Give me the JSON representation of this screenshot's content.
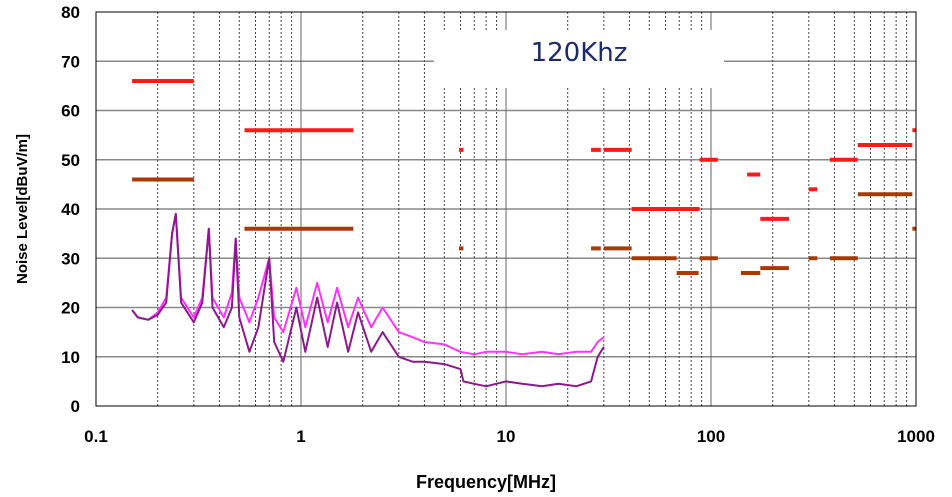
{
  "chart_data": {
    "type": "line",
    "annotation": "120Khz",
    "xlabel": "Frequency[MHz]",
    "ylabel": "Noise Level[dBuV/m]",
    "xscale": "log",
    "xlim": [
      0.1,
      1000
    ],
    "ylim": [
      0,
      80
    ],
    "xticks": [
      0.1,
      1,
      10,
      100,
      1000
    ],
    "xtick_labels": [
      "0.1",
      "1",
      "10",
      "100",
      "1000"
    ],
    "yticks": [
      0,
      10,
      20,
      30,
      40,
      50,
      60,
      70,
      80
    ],
    "ytick_labels": [
      "0",
      "10",
      "20",
      "30",
      "40",
      "50",
      "60",
      "70",
      "80"
    ],
    "grid": true,
    "colors": {
      "limit_high": "#ff1a1a",
      "limit_low": "#a83a0a",
      "trace_magenta": "#ff33ff",
      "trace_purple": "#8b1a8b"
    },
    "limit_lines_red": [
      {
        "x": [
          0.15,
          0.3
        ],
        "y": 66
      },
      {
        "x": [
          0.53,
          1.8
        ],
        "y": 56
      },
      {
        "x": [
          5.9,
          6.2
        ],
        "y": 52
      },
      {
        "x": [
          26,
          29
        ],
        "y": 52
      },
      {
        "x": [
          30,
          41
        ],
        "y": 52
      },
      {
        "x": [
          41,
          88
        ],
        "y": 40
      },
      {
        "x": [
          88,
          108
        ],
        "y": 50
      },
      {
        "x": [
          150,
          174
        ],
        "y": 47
      },
      {
        "x": [
          174,
          240
        ],
        "y": 38
      },
      {
        "x": [
          300,
          330
        ],
        "y": 44
      },
      {
        "x": [
          380,
          520
        ],
        "y": 50
      },
      {
        "x": [
          520,
          960
        ],
        "y": 53
      },
      {
        "x": [
          960,
          1000
        ],
        "y": 56
      }
    ],
    "limit_lines_brown": [
      {
        "x": [
          0.15,
          0.3
        ],
        "y": 46
      },
      {
        "x": [
          0.53,
          1.8
        ],
        "y": 36
      },
      {
        "x": [
          5.9,
          6.2
        ],
        "y": 32
      },
      {
        "x": [
          26,
          29
        ],
        "y": 32
      },
      {
        "x": [
          30,
          41
        ],
        "y": 32
      },
      {
        "x": [
          41,
          68
        ],
        "y": 30
      },
      {
        "x": [
          68,
          87
        ],
        "y": 27
      },
      {
        "x": [
          88,
          108
        ],
        "y": 30
      },
      {
        "x": [
          140,
          174
        ],
        "y": 27
      },
      {
        "x": [
          174,
          240
        ],
        "y": 28
      },
      {
        "x": [
          300,
          330
        ],
        "y": 30
      },
      {
        "x": [
          380,
          520
        ],
        "y": 30
      },
      {
        "x": [
          520,
          960
        ],
        "y": 43
      },
      {
        "x": [
          960,
          1000
        ],
        "y": 36
      }
    ],
    "series": [
      {
        "values": [
          [
            0.15,
            19.5
          ],
          [
            0.16,
            18
          ],
          [
            0.18,
            17.5
          ],
          [
            0.2,
            19
          ],
          [
            0.22,
            22
          ],
          [
            0.235,
            35
          ],
          [
            0.245,
            39
          ],
          [
            0.26,
            22
          ],
          [
            0.3,
            18
          ],
          [
            0.33,
            22
          ],
          [
            0.355,
            36
          ],
          [
            0.37,
            22
          ],
          [
            0.42,
            18
          ],
          [
            0.46,
            23
          ],
          [
            0.48,
            34
          ],
          [
            0.5,
            22
          ],
          [
            0.56,
            17
          ],
          [
            0.62,
            22
          ],
          [
            0.7,
            30
          ],
          [
            0.74,
            18
          ],
          [
            0.82,
            15
          ],
          [
            0.95,
            24
          ],
          [
            1.05,
            16
          ],
          [
            1.2,
            25
          ],
          [
            1.35,
            17
          ],
          [
            1.5,
            24
          ],
          [
            1.7,
            16
          ],
          [
            1.9,
            22
          ],
          [
            2.2,
            16
          ],
          [
            2.5,
            20
          ],
          [
            3,
            15
          ],
          [
            3.5,
            14
          ],
          [
            4,
            13
          ],
          [
            5,
            12.5
          ],
          [
            6,
            11
          ],
          [
            7,
            10.5
          ],
          [
            8,
            11
          ],
          [
            10,
            11
          ],
          [
            12,
            10.5
          ],
          [
            15,
            11
          ],
          [
            18,
            10.5
          ],
          [
            22,
            11
          ],
          [
            26,
            11
          ],
          [
            28,
            13
          ],
          [
            30,
            14
          ]
        ]
      },
      {
        "values": [
          [
            0.15,
            19.5
          ],
          [
            0.16,
            18
          ],
          [
            0.18,
            17.5
          ],
          [
            0.2,
            18.5
          ],
          [
            0.22,
            21
          ],
          [
            0.235,
            35
          ],
          [
            0.245,
            39
          ],
          [
            0.26,
            21
          ],
          [
            0.3,
            17
          ],
          [
            0.33,
            21
          ],
          [
            0.355,
            36
          ],
          [
            0.37,
            20
          ],
          [
            0.42,
            16
          ],
          [
            0.46,
            20
          ],
          [
            0.48,
            34
          ],
          [
            0.5,
            18
          ],
          [
            0.56,
            11
          ],
          [
            0.62,
            16
          ],
          [
            0.7,
            30
          ],
          [
            0.74,
            13
          ],
          [
            0.82,
            9
          ],
          [
            0.95,
            20
          ],
          [
            1.05,
            11
          ],
          [
            1.2,
            22
          ],
          [
            1.35,
            12
          ],
          [
            1.5,
            21
          ],
          [
            1.7,
            11
          ],
          [
            1.9,
            19
          ],
          [
            2.2,
            11
          ],
          [
            2.5,
            15
          ],
          [
            3,
            10
          ],
          [
            3.5,
            9
          ],
          [
            4,
            9
          ],
          [
            5,
            8.5
          ],
          [
            6,
            7.5
          ],
          [
            6.2,
            5
          ],
          [
            7,
            4.5
          ],
          [
            8,
            4
          ],
          [
            10,
            5
          ],
          [
            12,
            4.5
          ],
          [
            15,
            4
          ],
          [
            18,
            4.5
          ],
          [
            22,
            4
          ],
          [
            26,
            5
          ],
          [
            28,
            10
          ],
          [
            30,
            12
          ]
        ]
      }
    ]
  }
}
